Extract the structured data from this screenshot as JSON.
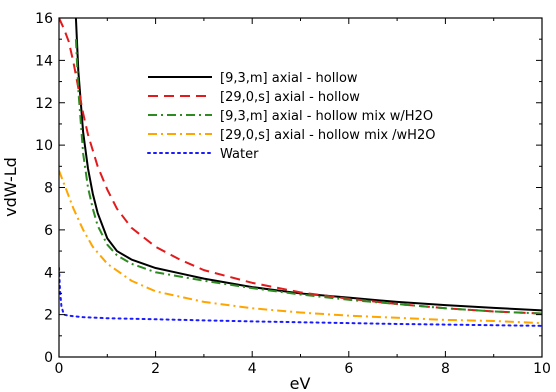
{
  "chart_data": {
    "type": "line",
    "title": "",
    "xlabel": "eV",
    "ylabel": "vdW-Ld",
    "xlim": [
      0,
      10
    ],
    "ylim": [
      0,
      16
    ],
    "xticks": [
      0,
      2,
      4,
      6,
      8,
      10
    ],
    "yticks": [
      0,
      2,
      4,
      6,
      8,
      10,
      12,
      14,
      16
    ],
    "x_tick_labels": [
      "0",
      "2",
      "4",
      "6",
      "8",
      "10"
    ],
    "y_tick_labels": [
      "0",
      "2",
      "4",
      "6",
      "8",
      "10",
      "12",
      "14",
      "16"
    ],
    "grid": false,
    "legend_position": "upper-right",
    "series": [
      {
        "name": "[9,3,m] axial - hollow",
        "color": "#000000",
        "dash": "solid",
        "x": [
          0.35,
          0.4,
          0.5,
          0.6,
          0.7,
          0.8,
          1.0,
          1.2,
          1.5,
          2.0,
          2.5,
          3.0,
          4.0,
          5.0,
          6.0,
          7.0,
          8.0,
          9.0,
          10.0
        ],
        "values": [
          16.0,
          13.5,
          10.6,
          8.9,
          7.7,
          6.8,
          5.6,
          5.0,
          4.6,
          4.2,
          3.95,
          3.7,
          3.3,
          3.0,
          2.8,
          2.6,
          2.45,
          2.32,
          2.2
        ]
      },
      {
        "name": "[29,0,s] axial - hollow",
        "color": "#e31a1c",
        "dash": "dashed",
        "x": [
          0.0,
          0.1,
          0.2,
          0.3,
          0.4,
          0.5,
          0.6,
          0.8,
          1.0,
          1.2,
          1.5,
          2.0,
          2.5,
          3.0,
          4.0,
          5.0,
          6.0,
          7.0,
          8.0,
          9.0,
          10.0
        ],
        "values": [
          16.0,
          15.5,
          14.9,
          13.9,
          12.7,
          11.5,
          10.5,
          9.0,
          7.9,
          7.0,
          6.1,
          5.2,
          4.6,
          4.1,
          3.5,
          3.05,
          2.75,
          2.5,
          2.3,
          2.15,
          2.05
        ]
      },
      {
        "name": "[9,3,m] axial - hollow mix w/H2O",
        "color": "#2e8b22",
        "dash": "dashdot",
        "x": [
          0.35,
          0.4,
          0.5,
          0.6,
          0.7,
          0.8,
          1.0,
          1.2,
          1.5,
          2.0,
          2.5,
          3.0,
          4.0,
          5.0,
          6.0,
          7.0,
          8.0,
          9.0,
          10.0
        ],
        "values": [
          15.0,
          12.6,
          9.6,
          8.0,
          7.0,
          6.2,
          5.3,
          4.8,
          4.4,
          4.0,
          3.8,
          3.6,
          3.25,
          2.95,
          2.7,
          2.5,
          2.3,
          2.15,
          2.05
        ]
      },
      {
        "name": "[29,0,s] axial - hollow mix /wH2O",
        "color": "#ffa500",
        "dash": "dashdot",
        "x": [
          0.0,
          0.1,
          0.2,
          0.3,
          0.5,
          0.7,
          1.0,
          1.5,
          2.0,
          3.0,
          4.0,
          5.0,
          6.0,
          7.0,
          8.0,
          9.0,
          10.0
        ],
        "values": [
          8.8,
          8.2,
          7.6,
          7.0,
          6.0,
          5.2,
          4.4,
          3.6,
          3.1,
          2.6,
          2.3,
          2.1,
          1.95,
          1.85,
          1.75,
          1.7,
          1.6
        ]
      },
      {
        "name": "Water",
        "color": "#1a1aff",
        "dash": "dotted",
        "x": [
          0.0,
          0.02,
          0.05,
          0.1,
          0.2,
          0.5,
          1.0,
          2.0,
          3.0,
          4.0,
          5.0,
          6.0,
          7.0,
          8.0,
          9.0,
          10.0
        ],
        "values": [
          4.2,
          3.2,
          2.4,
          2.0,
          1.95,
          1.88,
          1.83,
          1.78,
          1.73,
          1.68,
          1.64,
          1.6,
          1.56,
          1.53,
          1.5,
          1.47
        ]
      }
    ]
  }
}
